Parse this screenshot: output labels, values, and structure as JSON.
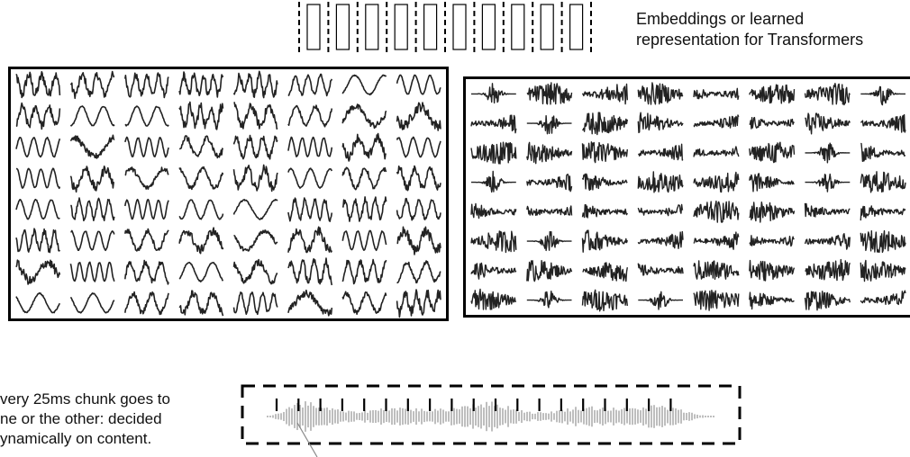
{
  "embeddings": {
    "count": 10,
    "caption_line1": "Embeddings or learned",
    "caption_line2": "representation for Transformers"
  },
  "left_panel": {
    "rows": 8,
    "cols": 8,
    "style": "smooth-and-noisy-low-frequency-waveforms"
  },
  "right_panel": {
    "rows": 8,
    "cols": 8,
    "style": "high-frequency-bursty-waveforms"
  },
  "chunk_caption": {
    "line1": "very 25ms chunk goes to",
    "line2": "ne or the other: decided",
    "line3": "ynamically on content."
  },
  "audio": {
    "chunk_markers": 19,
    "colors": {
      "waveform": "#9a9a9a",
      "marker": "#000000"
    }
  }
}
